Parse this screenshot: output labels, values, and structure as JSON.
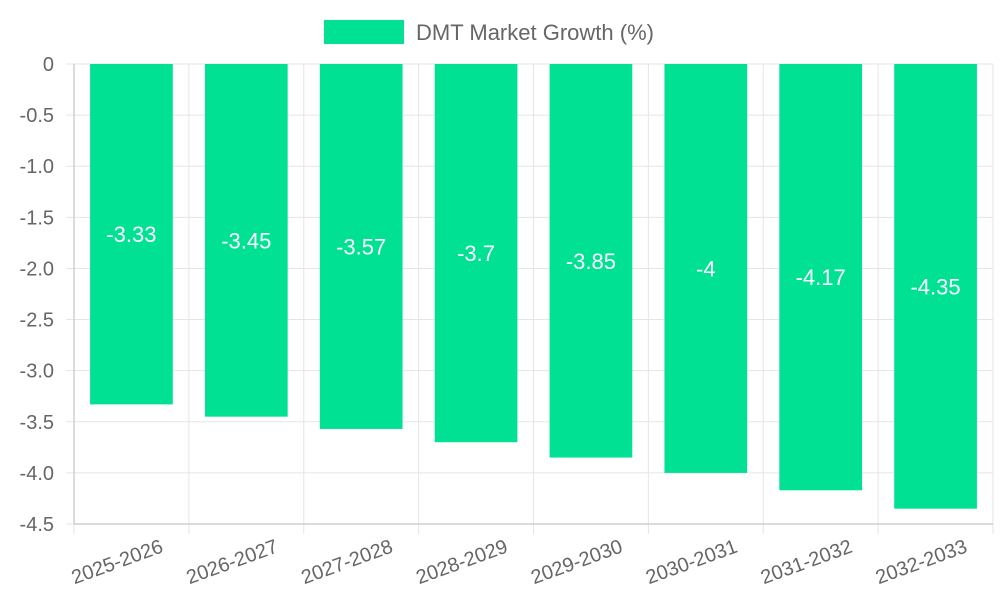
{
  "chart_data": {
    "type": "bar",
    "categories": [
      "2025-2026",
      "2026-2027",
      "2027-2028",
      "2028-2029",
      "2029-2030",
      "2030-2031",
      "2031-2032",
      "2032-2033"
    ],
    "series": [
      {
        "name": "DMT Market Growth (%)",
        "values": [
          -3.33,
          -3.45,
          -3.57,
          -3.7,
          -3.85,
          -4,
          -4.17,
          -4.35
        ],
        "color": "#00e193"
      }
    ],
    "data_labels": [
      "-3.33",
      "-3.45",
      "-3.57",
      "-3.7",
      "-3.85",
      "-4",
      "-4.17",
      "-4.35"
    ],
    "y_ticks": [
      "0",
      "-0.5",
      "-1.0",
      "-1.5",
      "-2.0",
      "-2.5",
      "-3.0",
      "-3.5",
      "-4.0",
      "-4.5"
    ],
    "ylim": [
      -4.5,
      0
    ],
    "legend_position": "top-center",
    "grid": true,
    "title": "",
    "xlabel": "",
    "ylabel": ""
  }
}
